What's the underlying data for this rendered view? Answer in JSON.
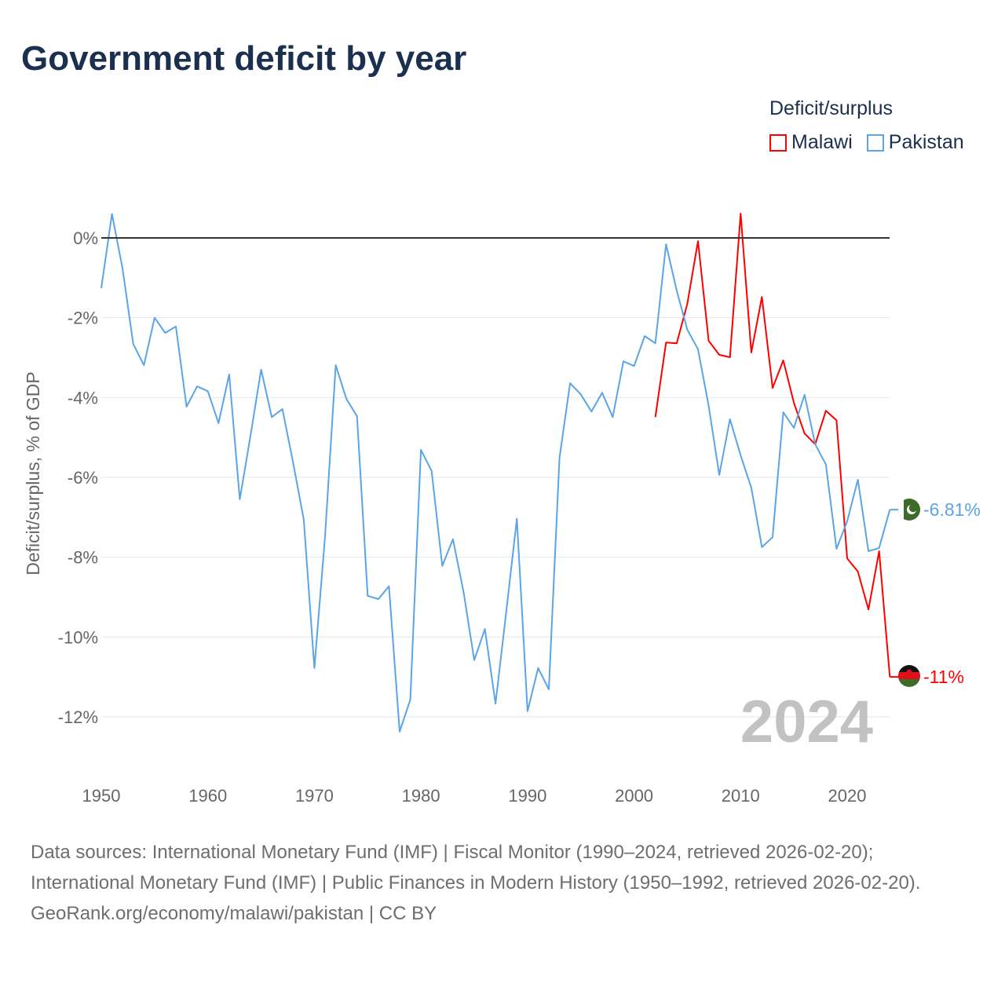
{
  "title": "Government deficit by year",
  "legend": {
    "title": "Deficit/surplus",
    "items": [
      {
        "name": "Malawi",
        "color": "#ff0000"
      },
      {
        "name": "Pakistan",
        "color": "#5ba4e6"
      }
    ]
  },
  "chart_data": {
    "type": "line",
    "title": "Government deficit by year",
    "xlabel": "",
    "ylabel": "Deficit/surplus, % of GDP",
    "xlim": [
      1950,
      2024
    ],
    "ylim": [
      -13,
      1
    ],
    "xticks": [
      1950,
      1960,
      1970,
      1980,
      1990,
      2000,
      2010,
      2020
    ],
    "yticks": [
      {
        "v": 0,
        "label": "0%"
      },
      {
        "v": -2,
        "label": "-2%"
      },
      {
        "v": -4,
        "label": "-4%"
      },
      {
        "v": -6,
        "label": "-6%"
      },
      {
        "v": -8,
        "label": "-8%"
      },
      {
        "v": -10,
        "label": "-10%"
      },
      {
        "v": -12,
        "label": "-12%"
      }
    ],
    "year_watermark": "2024",
    "series": [
      {
        "name": "Pakistan",
        "color": "#5ba4e6",
        "start": 1950,
        "end_label": "-6.81%",
        "values": [
          -1.26,
          0.6,
          -0.77,
          -2.66,
          -3.19,
          -2.0,
          -2.38,
          -2.22,
          -4.23,
          -3.72,
          -3.84,
          -4.64,
          -3.42,
          -6.55,
          -4.96,
          -3.3,
          -4.49,
          -4.29,
          -5.63,
          -7.06,
          -10.78,
          -7.48,
          -3.19,
          -4.03,
          -4.47,
          -8.97,
          -9.05,
          -8.73,
          -12.37,
          -11.57,
          -5.31,
          -5.84,
          -8.22,
          -7.55,
          -8.87,
          -10.58,
          -9.8,
          -11.67,
          -9.38,
          -7.04,
          -11.86,
          -10.78,
          -11.31,
          -5.51,
          -3.64,
          -3.92,
          -4.35,
          -3.88,
          -4.49,
          -3.09,
          -3.21,
          -2.46,
          -2.64,
          -0.16,
          -1.32,
          -2.3,
          -2.79,
          -4.21,
          -5.94,
          -4.54,
          -5.45,
          -6.26,
          -7.75,
          -7.5,
          -4.37,
          -4.76,
          -3.93,
          -5.17,
          -5.68,
          -7.79,
          -7.1,
          -6.06,
          -7.85,
          -7.77,
          -6.81
        ]
      },
      {
        "name": "Malawi",
        "color": "#ff0000",
        "start": 2002,
        "end_label": "-11%",
        "values": [
          -4.49,
          -2.62,
          -2.64,
          -1.65,
          -0.08,
          -2.58,
          -2.93,
          -2.99,
          0.61,
          -2.87,
          -1.48,
          -3.76,
          -3.07,
          -4.13,
          -4.9,
          -5.17,
          -4.33,
          -4.57,
          -8.03,
          -8.36,
          -9.31,
          -7.85,
          -11.0
        ]
      }
    ]
  },
  "footer": {
    "sources": "Data sources: International Monetary Fund (IMF) | Fiscal Monitor (1990–2024, retrieved 2026-02-20); International Monetary Fund (IMF) | Public Finances in Modern History (1950–1992, retrieved 2026-02-20).",
    "credit": "GeoRank.org/economy/malawi/pakistan | CC BY"
  }
}
